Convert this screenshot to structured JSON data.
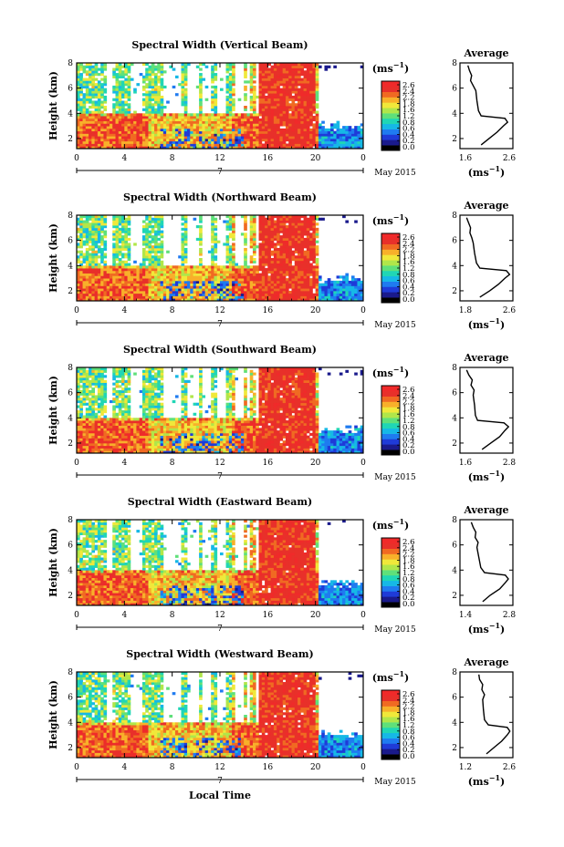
{
  "figure": {
    "xlabel": "Local Time",
    "colorbar_ticks": [
      "2.6",
      "2.4",
      "2.2",
      "1.8",
      "1.6",
      "1.2",
      "0.8",
      "0.6",
      "0.4",
      "0.2",
      "0.0"
    ],
    "colorbar_colors": [
      "#000000",
      "#1a1a8c",
      "#1f3bd8",
      "#1f7bf0",
      "#16b8e6",
      "#20d6b5",
      "#5fe07a",
      "#b0e64a",
      "#f0e83a",
      "#f8b02a",
      "#f06a22",
      "#e8302a",
      "#f02a2a"
    ],
    "average_unit_label": "(ms",
    "average_unit_sup": "−1",
    "average_unit_close": ")",
    "colorbar_unit_label": "(ms",
    "colorbar_unit_sup": "−1",
    "colorbar_unit_close": ")"
  },
  "chart_data": [
    {
      "type": "heatmap",
      "title": "Spectral Width (Vertical Beam)",
      "ylabel": "Height (km)",
      "xticks": [
        "0",
        "4",
        "8",
        "12",
        "16",
        "20",
        "0"
      ],
      "day_label": "7",
      "date_label": "May 2015",
      "yticks": [
        "2",
        "4",
        "6",
        "8"
      ],
      "ylim": [
        1.2,
        8.0
      ],
      "xlim": [
        0,
        24
      ],
      "profile": {
        "title": "Average",
        "xticks": [
          "1.6",
          "2.6"
        ],
        "yticks": [
          "2",
          "4",
          "6",
          "8"
        ],
        "xlim": [
          1.6,
          2.6
        ],
        "height": [
          1.5,
          2.0,
          2.5,
          3.0,
          3.3,
          3.6,
          3.8,
          4.2,
          5.0,
          5.8,
          6.2,
          6.6,
          7.0,
          7.4,
          7.8
        ],
        "value": [
          2.0,
          2.15,
          2.3,
          2.42,
          2.5,
          2.45,
          2.0,
          1.95,
          1.92,
          1.9,
          1.85,
          1.8,
          1.82,
          1.78,
          1.75
        ]
      }
    },
    {
      "type": "heatmap",
      "title": "Spectral Width (Northward Beam)",
      "ylabel": "Height (km)",
      "xticks": [
        "0",
        "4",
        "8",
        "12",
        "16",
        "20",
        "0"
      ],
      "day_label": "7",
      "date_label": "May 2015",
      "yticks": [
        "2",
        "4",
        "6",
        "8"
      ],
      "ylim": [
        1.2,
        8.0
      ],
      "xlim": [
        0,
        24
      ],
      "profile": {
        "title": "Average",
        "xticks": [
          "1.8",
          "2.6"
        ],
        "yticks": [
          "2",
          "4",
          "6",
          "8"
        ],
        "xlim": [
          1.8,
          2.6
        ],
        "height": [
          1.5,
          2.0,
          2.5,
          3.0,
          3.3,
          3.6,
          3.8,
          4.2,
          5.0,
          5.8,
          6.2,
          6.6,
          7.0,
          7.4,
          7.8
        ],
        "value": [
          2.1,
          2.25,
          2.38,
          2.48,
          2.55,
          2.5,
          2.1,
          2.05,
          2.02,
          2.0,
          1.98,
          1.95,
          1.96,
          1.93,
          1.9
        ]
      }
    },
    {
      "type": "heatmap",
      "title": "Spectral Width (Southward Beam)",
      "ylabel": "Height (km)",
      "xticks": [
        "0",
        "4",
        "8",
        "12",
        "16",
        "20",
        "0"
      ],
      "day_label": "7",
      "date_label": "May 2015",
      "yticks": [
        "2",
        "4",
        "6",
        "8"
      ],
      "ylim": [
        1.2,
        8.0
      ],
      "xlim": [
        0,
        24
      ],
      "profile": {
        "title": "Average",
        "xticks": [
          "1.6",
          "2.8"
        ],
        "yticks": [
          "2",
          "4",
          "6",
          "8"
        ],
        "xlim": [
          1.6,
          2.8
        ],
        "height": [
          1.5,
          2.0,
          2.5,
          3.0,
          3.3,
          3.6,
          3.8,
          4.2,
          5.0,
          5.8,
          6.2,
          6.6,
          7.0,
          7.4,
          7.8
        ],
        "value": [
          2.1,
          2.3,
          2.5,
          2.62,
          2.7,
          2.6,
          2.0,
          1.95,
          1.93,
          1.9,
          1.92,
          1.85,
          1.88,
          1.8,
          1.75
        ]
      }
    },
    {
      "type": "heatmap",
      "title": "Spectral Width (Eastward Beam)",
      "ylabel": "Height (km)",
      "xticks": [
        "0",
        "4",
        "8",
        "12",
        "16",
        "20",
        "0"
      ],
      "day_label": "7",
      "date_label": "May 2015",
      "yticks": [
        "2",
        "4",
        "6",
        "8"
      ],
      "ylim": [
        1.2,
        8.0
      ],
      "xlim": [
        0,
        24
      ],
      "profile": {
        "title": "Average",
        "xticks": [
          "1.4",
          "2.8"
        ],
        "yticks": [
          "2",
          "4",
          "6",
          "8"
        ],
        "xlim": [
          1.4,
          2.8
        ],
        "height": [
          1.5,
          2.0,
          2.5,
          3.0,
          3.3,
          3.6,
          3.8,
          4.2,
          5.0,
          5.8,
          6.2,
          6.6,
          7.0,
          7.4,
          7.8
        ],
        "value": [
          2.0,
          2.2,
          2.45,
          2.6,
          2.68,
          2.6,
          2.05,
          1.95,
          1.9,
          1.85,
          1.88,
          1.8,
          1.82,
          1.75,
          1.7
        ]
      }
    },
    {
      "type": "heatmap",
      "title": "Spectral Width (Westward Beam)",
      "ylabel": "Height (km)",
      "xticks": [
        "0",
        "4",
        "8",
        "12",
        "16",
        "20",
        "0"
      ],
      "day_label": "7",
      "date_label": "May 2015",
      "yticks": [
        "2",
        "4",
        "6",
        "8"
      ],
      "ylim": [
        1.2,
        8.0
      ],
      "xlim": [
        0,
        24
      ],
      "profile": {
        "title": "Average",
        "xticks": [
          "1.2",
          "2.6"
        ],
        "yticks": [
          "2",
          "4",
          "6",
          "8"
        ],
        "xlim": [
          1.2,
          2.6
        ],
        "height": [
          1.5,
          2.0,
          2.5,
          3.0,
          3.3,
          3.6,
          3.8,
          4.2,
          5.0,
          5.8,
          6.2,
          6.6,
          7.0,
          7.4,
          7.8
        ],
        "value": [
          1.9,
          2.1,
          2.3,
          2.45,
          2.52,
          2.45,
          1.95,
          1.85,
          1.82,
          1.8,
          1.85,
          1.78,
          1.8,
          1.72,
          1.7
        ]
      }
    }
  ]
}
